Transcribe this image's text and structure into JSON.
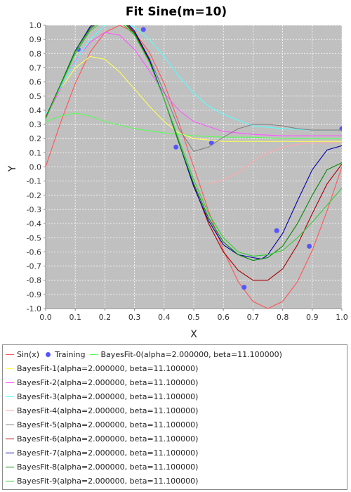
{
  "chart_data": {
    "type": "line",
    "title": "Fit Sine(m=10)",
    "xlabel": "X",
    "ylabel": "Y",
    "xlim": [
      0.0,
      1.0
    ],
    "ylim": [
      -1.0,
      1.0
    ],
    "xticks": [
      "0.0",
      "0.1",
      "0.2",
      "0.3",
      "0.4",
      "0.5",
      "0.6",
      "0.7",
      "0.8",
      "0.9",
      "1.0"
    ],
    "yticks": [
      "1.0",
      "0.9",
      "0.8",
      "0.7",
      "0.6",
      "0.5",
      "0.4",
      "0.3",
      "0.2",
      "0.1",
      "0.0",
      "-0.1",
      "-0.2",
      "-0.3",
      "-0.4",
      "-0.5",
      "-0.6",
      "-0.7",
      "-0.8",
      "-0.9",
      "-1.0"
    ],
    "grid": true,
    "legend_position": "bottom",
    "background": "#c0c0c0",
    "series": [
      {
        "name": "Sin(x)",
        "color": "#ff5555",
        "x": [
          0,
          0.05,
          0.1,
          0.15,
          0.2,
          0.25,
          0.3,
          0.35,
          0.4,
          0.45,
          0.5,
          0.55,
          0.6,
          0.65,
          0.7,
          0.75,
          0.8,
          0.85,
          0.9,
          0.95,
          1.0
        ],
        "y": [
          0,
          0.31,
          0.59,
          0.81,
          0.95,
          1.0,
          0.95,
          0.81,
          0.59,
          0.31,
          0,
          -0.31,
          -0.59,
          -0.81,
          -0.95,
          -1.0,
          -0.95,
          -0.81,
          -0.59,
          -0.31,
          0
        ]
      },
      {
        "name": "Training",
        "color": "#5555ff",
        "marker": "circle",
        "x": [
          0.11,
          0.33,
          0.44,
          0.56,
          0.67,
          0.78,
          0.89,
          1.0
        ],
        "y": [
          0.83,
          0.97,
          0.14,
          0.17,
          -0.85,
          -0.45,
          -0.56,
          0.27
        ]
      },
      {
        "name": "BayesFit-0(alpha=2.000000, beta=11.100000)",
        "color": "#55ff55",
        "x": [
          0,
          0.05,
          0.1,
          0.15,
          0.2,
          0.3,
          0.4,
          0.5,
          0.6,
          0.7,
          0.8,
          0.9,
          1.0
        ],
        "y": [
          0.32,
          0.36,
          0.38,
          0.36,
          0.32,
          0.27,
          0.24,
          0.22,
          0.21,
          0.21,
          0.2,
          0.2,
          0.2
        ]
      },
      {
        "name": "BayesFit-1(alpha=2.000000, beta=11.100000)",
        "color": "#ffff55",
        "x": [
          0,
          0.05,
          0.1,
          0.15,
          0.2,
          0.25,
          0.3,
          0.35,
          0.4,
          0.45,
          0.5,
          0.6,
          0.7,
          0.8,
          0.9,
          1.0
        ],
        "y": [
          0.37,
          0.55,
          0.7,
          0.78,
          0.76,
          0.67,
          0.55,
          0.43,
          0.32,
          0.24,
          0.2,
          0.18,
          0.18,
          0.18,
          0.18,
          0.18
        ]
      },
      {
        "name": "BayesFit-2(alpha=2.000000, beta=11.100000)",
        "color": "#ff55ff",
        "x": [
          0,
          0.05,
          0.1,
          0.15,
          0.2,
          0.25,
          0.3,
          0.35,
          0.4,
          0.45,
          0.5,
          0.6,
          0.7,
          0.8,
          0.9,
          1.0
        ],
        "y": [
          0.35,
          0.55,
          0.75,
          0.88,
          0.95,
          0.93,
          0.83,
          0.68,
          0.52,
          0.4,
          0.32,
          0.25,
          0.23,
          0.22,
          0.22,
          0.22
        ]
      },
      {
        "name": "BayesFit-3(alpha=2.000000, beta=11.100000)",
        "color": "#55ffff",
        "x": [
          0,
          0.05,
          0.1,
          0.15,
          0.2,
          0.25,
          0.3,
          0.35,
          0.4,
          0.45,
          0.5,
          0.55,
          0.6,
          0.7,
          0.8,
          0.9,
          1.0
        ],
        "y": [
          0.37,
          0.56,
          0.74,
          0.9,
          1.0,
          1.02,
          0.99,
          0.9,
          0.78,
          0.64,
          0.52,
          0.43,
          0.37,
          0.29,
          0.27,
          0.26,
          0.26
        ]
      },
      {
        "name": "BayesFit-4(alpha=2.000000, beta=11.100000)",
        "color": "#ffaaaa",
        "x": [
          0.55,
          0.6,
          0.65,
          0.7,
          0.75,
          0.8,
          0.85,
          0.9,
          0.95,
          1.0
        ],
        "y": [
          -0.12,
          -0.09,
          -0.04,
          0.04,
          0.1,
          0.14,
          0.16,
          0.17,
          0.17,
          0.17
        ]
      },
      {
        "name": "BayesFit-5(alpha=2.000000, beta=11.100000)",
        "color": "#808080",
        "x": [
          0,
          0.05,
          0.1,
          0.15,
          0.2,
          0.25,
          0.3,
          0.35,
          0.4,
          0.45,
          0.5,
          0.55,
          0.6,
          0.65,
          0.7,
          0.75,
          0.8,
          0.85,
          0.9,
          0.95,
          1.0
        ],
        "y": [
          0.35,
          0.58,
          0.8,
          0.97,
          1.06,
          1.05,
          0.95,
          0.77,
          0.53,
          0.27,
          0.11,
          0.14,
          0.21,
          0.27,
          0.3,
          0.3,
          0.29,
          0.27,
          0.26,
          0.26,
          0.26
        ]
      },
      {
        "name": "BayesFit-6(alpha=2.000000, beta=11.100000)",
        "color": "#aa0000",
        "x": [
          0,
          0.05,
          0.1,
          0.15,
          0.2,
          0.25,
          0.3,
          0.35,
          0.4,
          0.45,
          0.5,
          0.55,
          0.6,
          0.65,
          0.7,
          0.75,
          0.8,
          0.85,
          0.9,
          0.95,
          1.0
        ],
        "y": [
          0.35,
          0.58,
          0.82,
          0.98,
          1.07,
          1.06,
          0.95,
          0.75,
          0.48,
          0.17,
          -0.13,
          -0.4,
          -0.6,
          -0.73,
          -0.8,
          -0.8,
          -0.72,
          -0.55,
          -0.33,
          -0.12,
          0.02
        ]
      },
      {
        "name": "BayesFit-7(alpha=2.000000, beta=11.100000)",
        "color": "#0000aa",
        "x": [
          0,
          0.05,
          0.1,
          0.15,
          0.2,
          0.25,
          0.3,
          0.35,
          0.4,
          0.45,
          0.5,
          0.55,
          0.6,
          0.65,
          0.7,
          0.73,
          0.75,
          0.8,
          0.85,
          0.9,
          0.95,
          1.0
        ],
        "y": [
          0.34,
          0.58,
          0.82,
          0.99,
          1.08,
          1.07,
          0.96,
          0.76,
          0.48,
          0.17,
          -0.14,
          -0.38,
          -0.55,
          -0.62,
          -0.64,
          -0.65,
          -0.62,
          -0.47,
          -0.24,
          -0.02,
          0.12,
          0.15
        ]
      },
      {
        "name": "BayesFit-8(alpha=2.000000, beta=11.100000)",
        "color": "#008800",
        "x": [
          0,
          0.05,
          0.1,
          0.15,
          0.2,
          0.25,
          0.3,
          0.35,
          0.4,
          0.45,
          0.5,
          0.55,
          0.6,
          0.65,
          0.7,
          0.75,
          0.8,
          0.85,
          0.9,
          0.95,
          1.0
        ],
        "y": [
          0.34,
          0.58,
          0.82,
          0.98,
          1.06,
          1.05,
          0.94,
          0.74,
          0.48,
          0.17,
          -0.12,
          -0.36,
          -0.53,
          -0.62,
          -0.66,
          -0.64,
          -0.56,
          -0.4,
          -0.2,
          -0.02,
          0.03
        ]
      },
      {
        "name": "BayesFit-9(alpha=2.000000, beta=11.100000)",
        "color": "#33cc33",
        "x": [
          0,
          0.05,
          0.1,
          0.15,
          0.2,
          0.25,
          0.3,
          0.35,
          0.4,
          0.45,
          0.5,
          0.55,
          0.6,
          0.65,
          0.7,
          0.75,
          0.8,
          0.85,
          0.9,
          0.95,
          1.0
        ],
        "y": [
          0.34,
          0.57,
          0.8,
          0.96,
          1.04,
          1.03,
          0.93,
          0.74,
          0.48,
          0.19,
          -0.09,
          -0.33,
          -0.5,
          -0.6,
          -0.63,
          -0.62,
          -0.59,
          -0.5,
          -0.39,
          -0.27,
          -0.15
        ]
      }
    ]
  }
}
